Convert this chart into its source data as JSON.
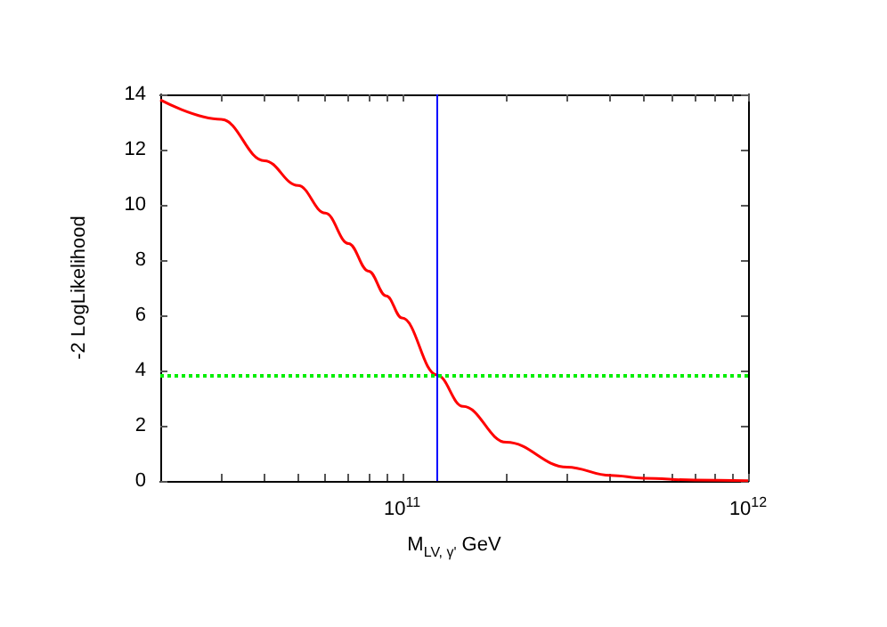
{
  "chart_data": {
    "type": "line",
    "xlabel": "M$_{LV, γ'}$ GeV",
    "ylabel": "-2 LogLikelihood",
    "log": "x",
    "x": [
      20000000000.0,
      30000000000.0,
      40000000000.0,
      50000000000.0,
      60000000000.0,
      70000000000.0,
      80000000000.0,
      90000000000.0,
      100000000000.0,
      126000000000.0,
      150000000000.0,
      200000000000.0,
      300000000000.0,
      400000000000.0,
      500000000000.0,
      700000000000.0,
      1000000000000.0
    ],
    "series": [
      {
        "color": "#ff0000",
        "values": [
          13.8,
          13.1,
          11.6,
          10.7,
          9.7,
          8.6,
          7.6,
          6.7,
          5.9,
          3.84,
          2.7,
          1.4,
          0.5,
          0.2,
          0.1,
          0.03,
          0.01
        ]
      }
    ],
    "xlim": [
      20000000000.0,
      1000000000000.0
    ],
    "xticks": [
      {
        "value": 30000000000.0,
        "label": null
      },
      {
        "value": 40000000000.0,
        "label": null
      },
      {
        "value": 50000000000.0,
        "label": null
      },
      {
        "value": 60000000000.0,
        "label": null
      },
      {
        "value": 70000000000.0,
        "label": null
      },
      {
        "value": 80000000000.0,
        "label": null
      },
      {
        "value": 90000000000.0,
        "label": null
      },
      {
        "value": 100000000000.0,
        "label": "10$^{11}$"
      },
      {
        "value": 200000000000.0,
        "label": null
      },
      {
        "value": 300000000000.0,
        "label": null
      },
      {
        "value": 400000000000.0,
        "label": null
      },
      {
        "value": 500000000000.0,
        "label": null
      },
      {
        "value": 600000000000.0,
        "label": null
      },
      {
        "value": 700000000000.0,
        "label": null
      },
      {
        "value": 800000000000.0,
        "label": null
      },
      {
        "value": 900000000000.0,
        "label": null
      },
      {
        "value": 1000000000000.0,
        "label": "10$^{12}$"
      }
    ],
    "ylim": [
      0,
      14
    ],
    "yticks": [
      0,
      2,
      4,
      6,
      8,
      10,
      12,
      14
    ],
    "ref_lines": [
      {
        "axis": "y",
        "value": 3.84,
        "color": "#00ee00",
        "line_style": "dotted"
      },
      {
        "axis": "x",
        "value": 126000000000.0,
        "color": "#0000ff",
        "line_style": "solid"
      }
    ],
    "grid": false,
    "marker": "none",
    "line_style": "solid"
  }
}
